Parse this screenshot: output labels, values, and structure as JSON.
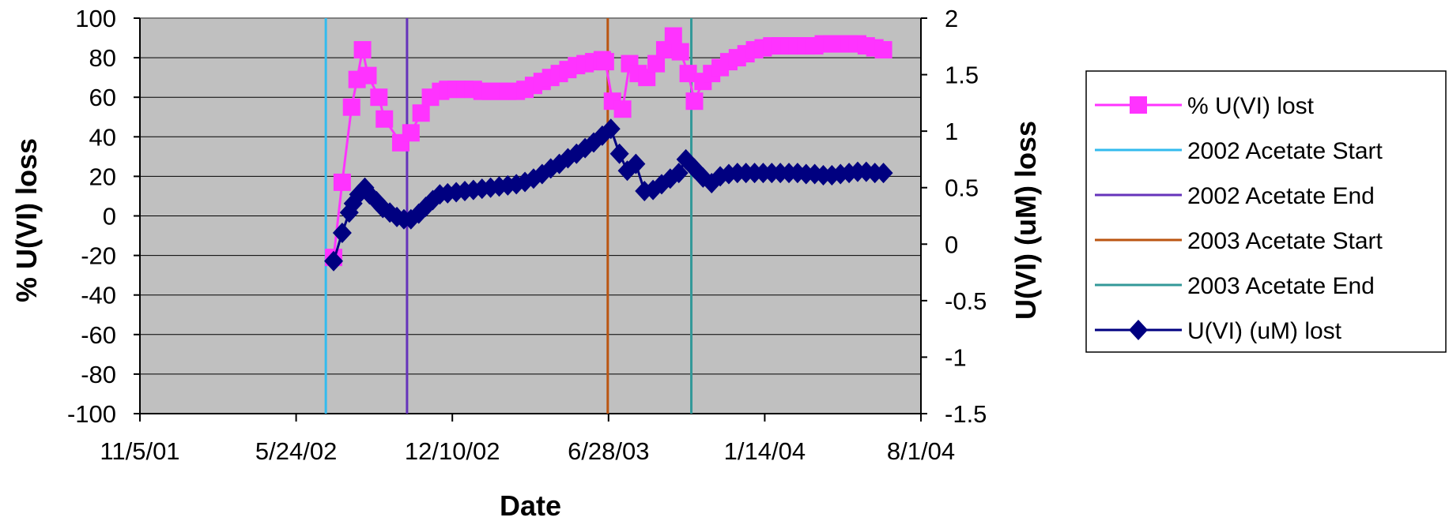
{
  "chart_data": {
    "type": "line",
    "xlabel": "Date",
    "ylabel_left": "% U(VI) loss",
    "ylabel_right": "U(VI) (uM) loss",
    "x_ticks": [
      "11/5/01",
      "5/24/02",
      "12/10/02",
      "6/28/03",
      "1/14/04",
      "8/1/04"
    ],
    "xlim": [
      "2001-11-05",
      "2004-08-01"
    ],
    "ylim_left": [
      -100,
      100
    ],
    "yticks_left": [
      "100",
      "80",
      "60",
      "40",
      "20",
      "0",
      "-20",
      "-40",
      "-60",
      "-80",
      "-100"
    ],
    "ylim_right": [
      -1.5,
      2
    ],
    "yticks_right": [
      "2",
      "1.5",
      "1",
      "0.5",
      "0",
      "-0.5",
      "-1",
      "-1.5"
    ],
    "grid": true,
    "legend_position": "right",
    "colors": {
      "plot_bg": "#c0c0c0",
      "pct_lost": "#ff33ff",
      "uM_lost": "#000080",
      "start_2002": "#33bbee",
      "end_2002": "#6633bb",
      "start_2003": "#bb5511",
      "end_2003": "#339999"
    },
    "markers": {
      "pct_lost": "square",
      "uM_lost": "diamond"
    },
    "vlines": [
      {
        "name": "2002 Acetate Start",
        "x": "2002-07-01",
        "color_key": "start_2002"
      },
      {
        "name": "2002 Acetate End",
        "x": "2002-10-13",
        "color_key": "end_2002"
      },
      {
        "name": "2003 Acetate Start",
        "x": "2003-06-27",
        "color_key": "start_2003"
      },
      {
        "name": "2003 Acetate End",
        "x": "2003-10-12",
        "color_key": "end_2003"
      }
    ],
    "series": [
      {
        "name": "% U(VI) lost",
        "axis": "left",
        "x": [
          "2002-07-11",
          "2002-07-22",
          "2002-08-03",
          "2002-08-10",
          "2002-08-17",
          "2002-08-24",
          "2002-09-07",
          "2002-09-14",
          "2002-10-05",
          "2002-10-18",
          "2002-10-31",
          "2002-11-12",
          "2002-11-25",
          "2002-12-04",
          "2002-12-15",
          "2002-12-26",
          "2003-01-06",
          "2003-01-17",
          "2003-01-28",
          "2003-02-08",
          "2003-02-19",
          "2003-03-02",
          "2003-03-13",
          "2003-03-24",
          "2003-04-04",
          "2003-04-15",
          "2003-04-26",
          "2003-05-07",
          "2003-05-18",
          "2003-05-29",
          "2003-06-09",
          "2003-06-20",
          "2003-06-24",
          "2003-07-03",
          "2003-07-16",
          "2003-07-25",
          "2003-08-05",
          "2003-08-16",
          "2003-08-28",
          "2003-09-08",
          "2003-09-19",
          "2003-09-28",
          "2003-10-08",
          "2003-10-16",
          "2003-10-27",
          "2003-11-07",
          "2003-11-18",
          "2003-11-29",
          "2003-12-10",
          "2003-12-21",
          "2004-01-01",
          "2004-01-12",
          "2004-01-23",
          "2004-02-03",
          "2004-02-14",
          "2004-02-25",
          "2004-03-07",
          "2004-03-18",
          "2004-03-29",
          "2004-04-09",
          "2004-04-20",
          "2004-05-01",
          "2004-05-12",
          "2004-05-23",
          "2004-06-03",
          "2004-06-14"
        ],
        "y": [
          -21,
          17,
          55,
          69,
          84,
          71,
          60,
          49,
          37,
          42,
          52,
          60,
          63,
          64,
          64,
          64,
          64,
          63,
          63,
          63,
          63,
          63,
          64,
          66,
          68,
          70,
          72,
          74,
          76,
          77,
          78,
          79,
          78,
          58,
          54,
          77,
          72,
          70,
          77,
          84,
          91,
          83,
          72,
          58,
          68,
          72,
          75,
          78,
          80,
          82,
          84,
          85,
          86,
          86,
          86,
          86,
          86,
          86,
          87,
          87,
          87,
          87,
          87,
          86,
          85,
          84
        ]
      },
      {
        "name": "U(VI) (uM) lost",
        "axis": "right",
        "x": [
          "2002-07-11",
          "2002-07-22",
          "2002-07-31",
          "2002-08-05",
          "2002-08-12",
          "2002-08-20",
          "2002-08-26",
          "2002-09-04",
          "2002-09-12",
          "2002-09-21",
          "2002-09-30",
          "2002-10-09",
          "2002-10-18",
          "2002-10-28",
          "2002-11-06",
          "2002-11-15",
          "2002-11-24",
          "2002-12-04",
          "2002-12-15",
          "2002-12-26",
          "2003-01-06",
          "2003-01-17",
          "2003-01-28",
          "2003-02-08",
          "2003-02-19",
          "2003-03-02",
          "2003-03-13",
          "2003-03-24",
          "2003-04-04",
          "2003-04-15",
          "2003-04-26",
          "2003-05-07",
          "2003-05-18",
          "2003-05-29",
          "2003-06-09",
          "2003-06-20",
          "2003-07-01",
          "2003-07-12",
          "2003-07-22",
          "2003-08-02",
          "2003-08-13",
          "2003-08-24",
          "2003-09-04",
          "2003-09-15",
          "2003-09-26",
          "2003-10-05",
          "2003-10-16",
          "2003-10-27",
          "2003-11-07",
          "2003-11-18",
          "2003-11-29",
          "2003-12-10",
          "2003-12-21",
          "2004-01-01",
          "2004-01-12",
          "2004-01-23",
          "2004-02-03",
          "2004-02-14",
          "2004-02-25",
          "2004-03-07",
          "2004-03-18",
          "2004-03-29",
          "2004-04-09",
          "2004-04-20",
          "2004-05-01",
          "2004-05-12",
          "2004-05-23",
          "2004-06-03",
          "2004-06-14"
        ],
        "y": [
          -0.15,
          0.1,
          0.28,
          0.36,
          0.44,
          0.5,
          0.44,
          0.38,
          0.32,
          0.28,
          0.24,
          0.22,
          0.22,
          0.27,
          0.33,
          0.39,
          0.44,
          0.45,
          0.46,
          0.47,
          0.48,
          0.49,
          0.5,
          0.51,
          0.52,
          0.53,
          0.55,
          0.58,
          0.62,
          0.67,
          0.71,
          0.76,
          0.8,
          0.85,
          0.9,
          0.96,
          1.02,
          0.8,
          0.65,
          0.71,
          0.47,
          0.48,
          0.53,
          0.58,
          0.63,
          0.75,
          0.67,
          0.59,
          0.54,
          0.6,
          0.62,
          0.63,
          0.63,
          0.63,
          0.63,
          0.63,
          0.63,
          0.63,
          0.63,
          0.62,
          0.62,
          0.61,
          0.61,
          0.62,
          0.63,
          0.64,
          0.64,
          0.63,
          0.63
        ]
      }
    ]
  }
}
